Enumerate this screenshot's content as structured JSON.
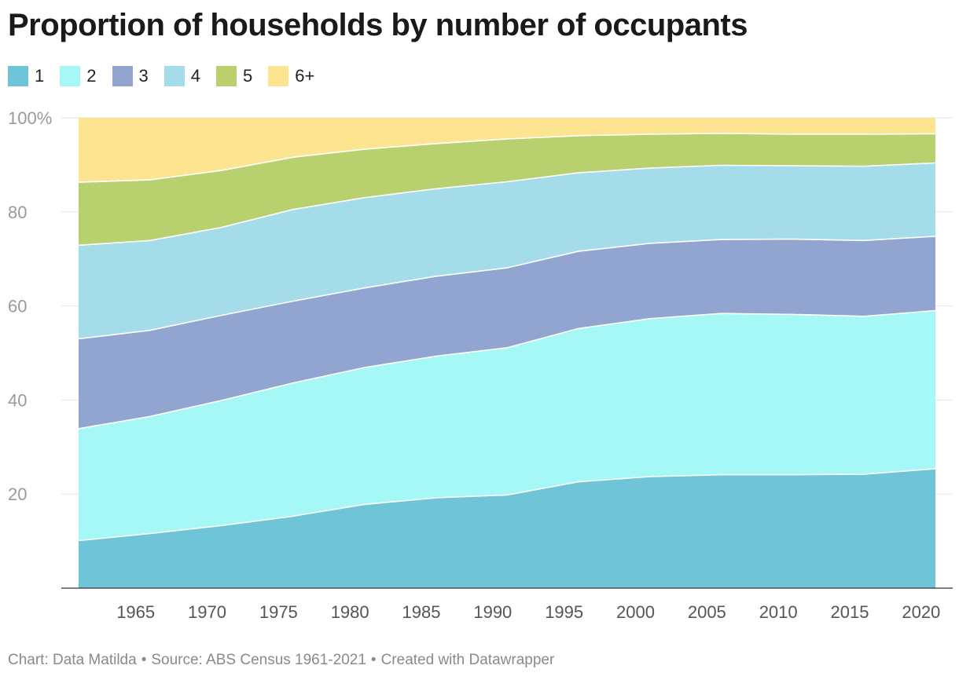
{
  "title": "Proportion of households by number of occupants",
  "footer": {
    "chart_credit": "Chart: Data Matilda",
    "source": "Source: ABS Census 1961-2021",
    "created_with": "Created with Datawrapper",
    "separator": "•"
  },
  "chart_data": {
    "type": "area",
    "stacked": true,
    "title": "Proportion of households by number of occupants",
    "x": [
      1961,
      1966,
      1971,
      1976,
      1981,
      1986,
      1991,
      1996,
      2001,
      2006,
      2011,
      2016,
      2021
    ],
    "x_ticks": [
      "1965",
      "1970",
      "1975",
      "1980",
      "1985",
      "1990",
      "1995",
      "2000",
      "2005",
      "2010",
      "2015",
      "2020"
    ],
    "y_ticks": [
      "20",
      "40",
      "60",
      "80",
      "100%"
    ],
    "y_tick_values": [
      20,
      40,
      60,
      80,
      100
    ],
    "ylim": [
      0,
      100
    ],
    "xlabel": "",
    "ylabel": "",
    "series": [
      {
        "name": "1",
        "color": "#6fc5d7",
        "values": [
          10.1,
          11.6,
          13.3,
          15.3,
          17.8,
          19.2,
          19.8,
          22.6,
          23.7,
          24.1,
          24.1,
          24.2,
          25.4
        ]
      },
      {
        "name": "2",
        "color": "#a5f8f6",
        "values": [
          23.8,
          24.9,
          26.6,
          28.3,
          29.1,
          30.1,
          31.3,
          32.6,
          33.6,
          34.3,
          34.1,
          33.6,
          33.6
        ]
      },
      {
        "name": "3",
        "color": "#91a5d0",
        "values": [
          19.1,
          18.3,
          18.1,
          17.4,
          16.9,
          17.0,
          17.0,
          16.4,
          16.0,
          15.7,
          16.0,
          16.1,
          15.8
        ]
      },
      {
        "name": "4",
        "color": "#a5dcea",
        "values": [
          19.9,
          19.1,
          18.7,
          19.5,
          19.2,
          18.6,
          18.3,
          16.7,
          16.0,
          15.8,
          15.6,
          15.8,
          15.6
        ]
      },
      {
        "name": "5",
        "color": "#b8d06e",
        "values": [
          13.4,
          12.9,
          12.1,
          11.1,
          10.3,
          9.6,
          9.1,
          7.9,
          7.2,
          6.8,
          6.7,
          6.8,
          6.2
        ]
      },
      {
        "name": "6+",
        "color": "#fde491",
        "values": [
          13.7,
          13.2,
          11.2,
          8.4,
          6.7,
          5.5,
          4.5,
          3.8,
          3.5,
          3.3,
          3.5,
          3.5,
          3.4
        ]
      }
    ]
  }
}
